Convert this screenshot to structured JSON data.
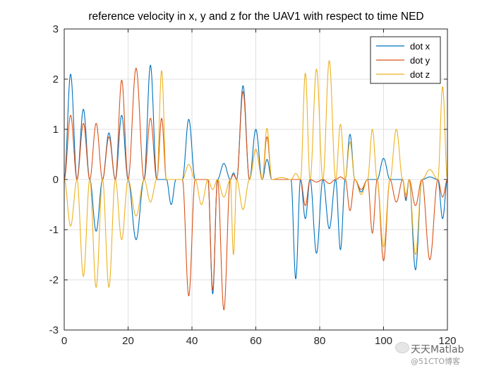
{
  "chart_data": {
    "type": "line",
    "title": "reference velocity in x, y and z for the UAV1 with respect to time NED",
    "xlabel": "",
    "ylabel": "",
    "xlim": [
      0,
      120
    ],
    "ylim": [
      -3,
      3
    ],
    "xticks": [
      0,
      20,
      40,
      60,
      80,
      100,
      120
    ],
    "yticks": [
      -3,
      -2,
      -1,
      0,
      1,
      2,
      3
    ],
    "grid": true,
    "legend_position": "top-right",
    "series": [
      {
        "name": "dot x",
        "color": "#0072BD",
        "lobes": [
          [
            0,
            4,
            2.1
          ],
          [
            4,
            8,
            1.4
          ],
          [
            8,
            12,
            -1.03
          ],
          [
            12,
            16,
            0.93
          ],
          [
            16,
            20,
            1.28
          ],
          [
            20,
            25,
            -1.2
          ],
          [
            25,
            29,
            2.28
          ],
          [
            29,
            32,
            0
          ],
          [
            32,
            35,
            -0.5
          ],
          [
            35,
            37,
            0
          ],
          [
            37,
            41,
            1.2
          ],
          [
            41,
            45,
            0
          ],
          [
            45,
            48,
            -2.28
          ],
          [
            48,
            52,
            0.32
          ],
          [
            52,
            54,
            0.13
          ],
          [
            54,
            58,
            1.87
          ],
          [
            58,
            62,
            1.0
          ],
          [
            62,
            65,
            0.4
          ],
          [
            65,
            71,
            0
          ],
          [
            71,
            74,
            -1.98
          ],
          [
            74,
            77,
            -0.78
          ],
          [
            77,
            81,
            -1.47
          ],
          [
            81,
            85,
            -0.98
          ],
          [
            85,
            88,
            -1.4
          ],
          [
            88,
            91,
            0.9
          ],
          [
            91,
            95,
            -0.25
          ],
          [
            95,
            98,
            0
          ],
          [
            98,
            102,
            0.42
          ],
          [
            102,
            106,
            0
          ],
          [
            106,
            108,
            -0.42
          ],
          [
            108,
            112,
            -1.8
          ],
          [
            112,
            117,
            0.05
          ],
          [
            117,
            120,
            -0.78
          ]
        ]
      },
      {
        "name": "dot y",
        "color": "#D95319",
        "lobes": [
          [
            0,
            4,
            1.28
          ],
          [
            4,
            8,
            1.12
          ],
          [
            8,
            12,
            1.12
          ],
          [
            12,
            16,
            0.85
          ],
          [
            16,
            20,
            1.98
          ],
          [
            20,
            25,
            2.22
          ],
          [
            25,
            29,
            1.22
          ],
          [
            29,
            32,
            1.22
          ],
          [
            32,
            35,
            0
          ],
          [
            35,
            37,
            0
          ],
          [
            37,
            41,
            -2.32
          ],
          [
            41,
            45,
            0
          ],
          [
            45,
            48,
            -2.2
          ],
          [
            48,
            52,
            -2.6
          ],
          [
            52,
            54,
            0.1
          ],
          [
            54,
            58,
            1.75
          ],
          [
            58,
            62,
            0.6
          ],
          [
            62,
            65,
            0.85
          ],
          [
            65,
            71,
            0
          ],
          [
            71,
            74,
            0
          ],
          [
            74,
            77,
            -0.52
          ],
          [
            77,
            81,
            -0.05
          ],
          [
            81,
            85,
            -0.08
          ],
          [
            85,
            88,
            0.05
          ],
          [
            88,
            91,
            -0.62
          ],
          [
            91,
            95,
            -0.2
          ],
          [
            95,
            98,
            -1.07
          ],
          [
            98,
            102,
            -1.62
          ],
          [
            102,
            106,
            -0.45
          ],
          [
            106,
            108,
            -0.38
          ],
          [
            108,
            112,
            -0.52
          ],
          [
            112,
            117,
            -1.6
          ],
          [
            117,
            120,
            -0.35
          ]
        ]
      },
      {
        "name": "dot z",
        "color": "#EDB120",
        "lobes": [
          [
            0,
            4,
            -0.93
          ],
          [
            4,
            8,
            -1.93
          ],
          [
            8,
            12,
            -2.15
          ],
          [
            12,
            16,
            -2.15
          ],
          [
            16,
            20,
            -1.2
          ],
          [
            20,
            25,
            -0.73
          ],
          [
            25,
            29,
            -0.45
          ],
          [
            29,
            32,
            2.17
          ],
          [
            32,
            35,
            0
          ],
          [
            35,
            37,
            0
          ],
          [
            37,
            41,
            0.3
          ],
          [
            41,
            45,
            -0.5
          ],
          [
            45,
            48,
            -0.2
          ],
          [
            48,
            52,
            -0.35
          ],
          [
            52,
            54,
            -1.5
          ],
          [
            54,
            58,
            -0.6
          ],
          [
            58,
            62,
            0.6
          ],
          [
            62,
            65,
            1.02
          ],
          [
            65,
            71,
            0.04
          ],
          [
            71,
            74,
            0.12
          ],
          [
            74,
            77,
            2.12
          ],
          [
            77,
            81,
            2.2
          ],
          [
            81,
            85,
            2.37
          ],
          [
            85,
            88,
            1.1
          ],
          [
            88,
            91,
            0.75
          ],
          [
            91,
            95,
            -0.3
          ],
          [
            95,
            98,
            1.0
          ],
          [
            98,
            102,
            -1.35
          ],
          [
            102,
            106,
            1.0
          ],
          [
            106,
            108,
            -0.3
          ],
          [
            108,
            112,
            -1.5
          ],
          [
            112,
            117,
            0.2
          ],
          [
            117,
            120,
            1.85
          ]
        ]
      }
    ]
  },
  "watermark": {
    "main": "天天Matlab",
    "sub": "@51CTO博客"
  }
}
